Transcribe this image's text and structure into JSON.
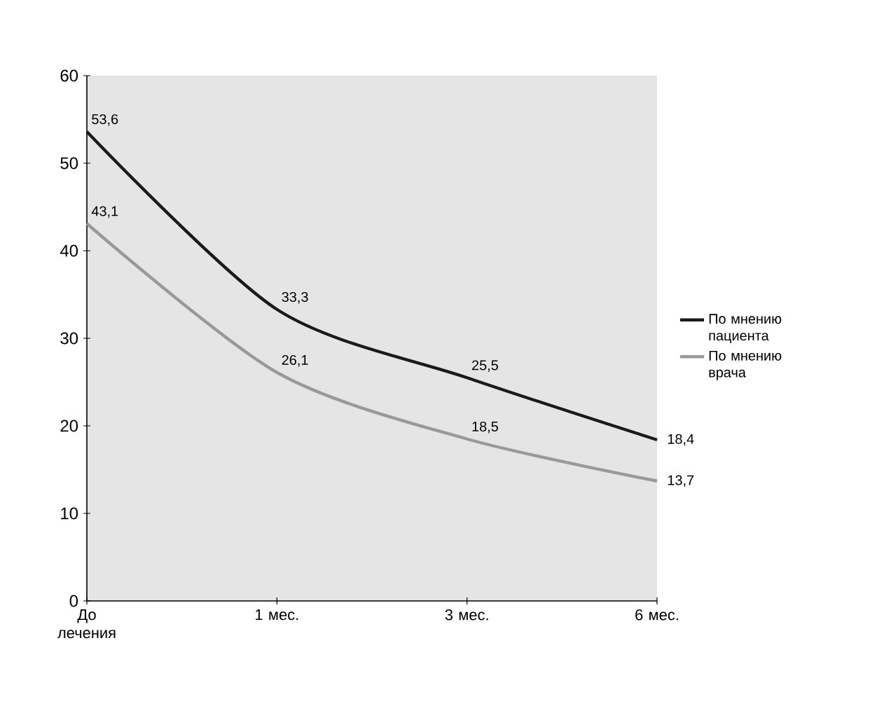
{
  "chart_data": {
    "type": "line",
    "categories": [
      "До лечения",
      "1 мес.",
      "3 мес.",
      "6 мес."
    ],
    "series": [
      {
        "name": "По мнению пациента",
        "color": "#1a1a1a",
        "values": [
          53.6,
          33.3,
          25.5,
          18.4
        ],
        "value_labels": [
          "53,6",
          "33,3",
          "25,5",
          "18,4"
        ]
      },
      {
        "name": "По мнению врача",
        "color": "#999999",
        "values": [
          43.1,
          26.1,
          18.5,
          13.7
        ],
        "value_labels": [
          "43,1",
          "26,1",
          "18,5",
          "13,7"
        ]
      }
    ],
    "ylim": [
      0,
      60
    ],
    "yticks": [
      0,
      10,
      20,
      30,
      40,
      50,
      60
    ],
    "grid": false,
    "legend": "right",
    "marker": "none",
    "line_style": "solid"
  }
}
